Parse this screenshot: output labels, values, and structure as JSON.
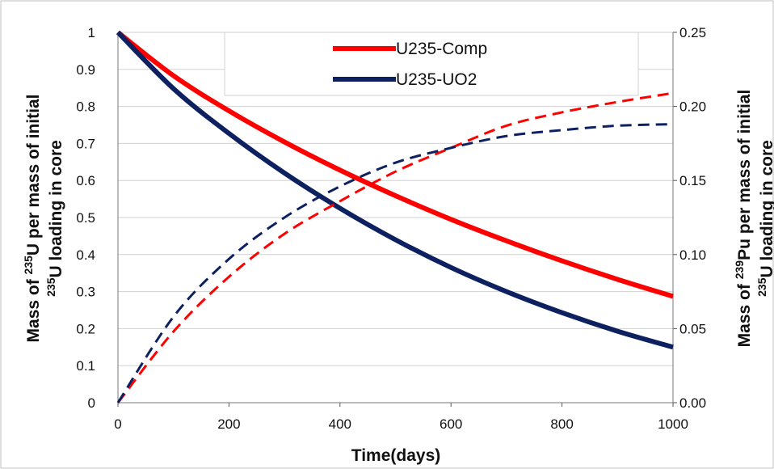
{
  "chart_data": {
    "type": "line",
    "xlabel": "Time(days)",
    "ylabel_left": {
      "pre": "Mass of ",
      "sup": "235",
      "post": "U per mass of initial"
    },
    "ylabel_left2": {
      "pre": "",
      "sup": "235",
      "post": "U  loading in core"
    },
    "ylabel_right": {
      "pre": "Mass of ",
      "sup": "239",
      "post": "Pu per mass of initial"
    },
    "ylabel_right2": {
      "pre": "",
      "sup": "235",
      "post": "U  loading in core"
    },
    "xlim": [
      0,
      1000
    ],
    "ylim_left": [
      0,
      1
    ],
    "ylim_right": [
      0,
      0.25
    ],
    "xticks": [
      "0",
      "200",
      "400",
      "600",
      "800",
      "1000"
    ],
    "yticks_left": [
      "0",
      "0.1",
      "0.2",
      "0.3",
      "0.4",
      "0.5",
      "0.6",
      "0.7",
      "0.8",
      "0.9",
      "1"
    ],
    "yticks_right": [
      "0.00",
      "0.05",
      "0.10",
      "0.15",
      "0.20",
      "0.25"
    ],
    "grid": "horizontal",
    "legend_position": "top-center",
    "x": [
      0,
      100,
      200,
      300,
      400,
      500,
      600,
      700,
      800,
      900,
      1000
    ],
    "series": [
      {
        "name": "U235-Comp",
        "axis": "left",
        "style": "solid",
        "color": "#ff0000",
        "values": [
          1.0,
          0.883,
          0.788,
          0.704,
          0.628,
          0.559,
          0.495,
          0.437,
          0.383,
          0.333,
          0.287
        ]
      },
      {
        "name": "U235-UO2",
        "axis": "left",
        "style": "solid",
        "color": "#0d2060",
        "values": [
          1.0,
          0.848,
          0.727,
          0.62,
          0.525,
          0.44,
          0.365,
          0.3,
          0.243,
          0.193,
          0.15
        ]
      },
      {
        "name": "",
        "axis": "right",
        "style": "dashed",
        "color": "#ff0000",
        "values": [
          0.0,
          0.048,
          0.085,
          0.114,
          0.136,
          0.156,
          0.172,
          0.187,
          0.196,
          0.203,
          0.209
        ]
      },
      {
        "name": "",
        "axis": "right",
        "style": "dashed",
        "color": "#0d2060",
        "values": [
          0.0,
          0.058,
          0.097,
          0.125,
          0.146,
          0.162,
          0.172,
          0.18,
          0.184,
          0.187,
          0.188
        ]
      }
    ]
  }
}
